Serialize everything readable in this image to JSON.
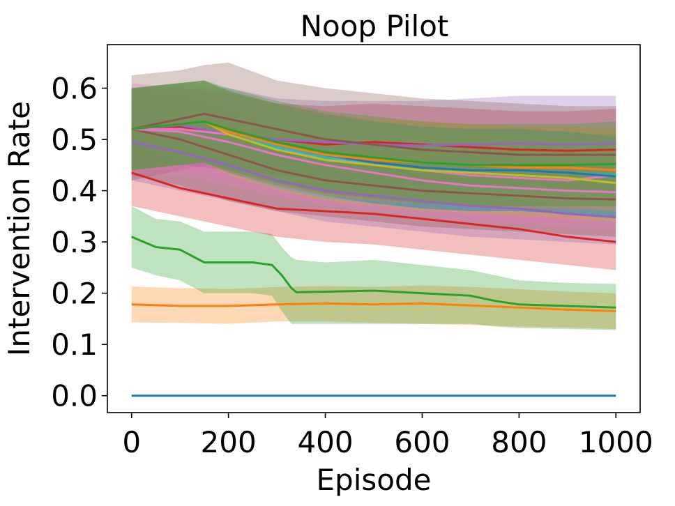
{
  "chart_data": {
    "type": "line",
    "title": "Noop Pilot",
    "xlabel": "Episode",
    "ylabel": "Intervention Rate",
    "xlim": [
      -50,
      1050
    ],
    "ylim": [
      -0.033,
      0.685
    ],
    "xticks": [
      0,
      200,
      400,
      600,
      800,
      1000
    ],
    "xtick_labels": [
      "0",
      "200",
      "400",
      "600",
      "800",
      "1000"
    ],
    "yticks": [
      0.0,
      0.1,
      0.2,
      0.3,
      0.4,
      0.5,
      0.6
    ],
    "ytick_labels": [
      "0.0",
      "0.1",
      "0.2",
      "0.3",
      "0.4",
      "0.5",
      "0.6"
    ],
    "grid": false,
    "band_opacity": 0.3,
    "series": [
      {
        "color": "#1f77b4",
        "x": [
          0,
          1000
        ],
        "mean": [
          0.0,
          0.0
        ],
        "lower": [
          0.0,
          0.0
        ],
        "upper": [
          0.0,
          0.0
        ]
      },
      {
        "color": "#ff7f0e",
        "x": [
          0,
          100,
          200,
          300,
          400,
          500,
          600,
          700,
          800,
          900,
          1000
        ],
        "mean": [
          0.178,
          0.175,
          0.175,
          0.178,
          0.18,
          0.178,
          0.18,
          0.176,
          0.172,
          0.168,
          0.165
        ],
        "lower": [
          0.143,
          0.142,
          0.14,
          0.145,
          0.145,
          0.142,
          0.14,
          0.138,
          0.135,
          0.133,
          0.13
        ],
        "upper": [
          0.213,
          0.21,
          0.208,
          0.212,
          0.214,
          0.212,
          0.215,
          0.212,
          0.208,
          0.203,
          0.2
        ]
      },
      {
        "color": "#2ca02c",
        "x": [
          0,
          50,
          100,
          150,
          200,
          250,
          290,
          310,
          330,
          340,
          400,
          500,
          600,
          700,
          750,
          800,
          900,
          1000
        ],
        "mean": [
          0.31,
          0.29,
          0.285,
          0.26,
          0.26,
          0.26,
          0.255,
          0.235,
          0.21,
          0.202,
          0.203,
          0.205,
          0.2,
          0.195,
          0.185,
          0.178,
          0.175,
          0.172
        ],
        "lower": [
          0.25,
          0.235,
          0.225,
          0.2,
          0.2,
          0.2,
          0.195,
          0.165,
          0.14,
          0.14,
          0.14,
          0.14,
          0.14,
          0.14,
          0.135,
          0.132,
          0.13,
          0.128
        ],
        "upper": [
          0.37,
          0.345,
          0.34,
          0.32,
          0.32,
          0.32,
          0.315,
          0.29,
          0.27,
          0.265,
          0.26,
          0.265,
          0.255,
          0.245,
          0.235,
          0.225,
          0.22,
          0.218
        ]
      },
      {
        "color": "#d62728",
        "x": [
          0,
          100,
          200,
          300,
          400,
          500,
          600,
          700,
          800,
          900,
          1000
        ],
        "mean": [
          0.435,
          0.405,
          0.385,
          0.365,
          0.36,
          0.355,
          0.345,
          0.335,
          0.325,
          0.31,
          0.3
        ],
        "lower": [
          0.37,
          0.35,
          0.33,
          0.31,
          0.3,
          0.295,
          0.285,
          0.275,
          0.265,
          0.255,
          0.245
        ],
        "upper": [
          0.5,
          0.46,
          0.44,
          0.42,
          0.415,
          0.41,
          0.405,
          0.395,
          0.385,
          0.37,
          0.36
        ]
      },
      {
        "color": "#d62728",
        "x": [
          0,
          100,
          200,
          300,
          400,
          500,
          600,
          700,
          800,
          900,
          1000
        ],
        "mean": [
          0.52,
          0.525,
          0.51,
          0.5,
          0.49,
          0.495,
          0.49,
          0.485,
          0.48,
          0.478,
          0.48
        ],
        "lower": [
          0.44,
          0.45,
          0.44,
          0.43,
          0.42,
          0.42,
          0.415,
          0.41,
          0.405,
          0.4,
          0.4
        ],
        "upper": [
          0.6,
          0.6,
          0.59,
          0.57,
          0.565,
          0.57,
          0.565,
          0.56,
          0.555,
          0.555,
          0.56
        ]
      },
      {
        "color": "#9467bd",
        "x": [
          0,
          100,
          200,
          300,
          400,
          500,
          600,
          700,
          800,
          900,
          1000
        ],
        "mean": [
          0.495,
          0.475,
          0.45,
          0.42,
          0.4,
          0.39,
          0.38,
          0.37,
          0.365,
          0.355,
          0.348
        ],
        "lower": [
          0.42,
          0.4,
          0.38,
          0.36,
          0.34,
          0.33,
          0.32,
          0.31,
          0.305,
          0.3,
          0.295
        ],
        "upper": [
          0.57,
          0.55,
          0.52,
          0.48,
          0.46,
          0.45,
          0.44,
          0.43,
          0.425,
          0.415,
          0.41
        ]
      },
      {
        "color": "#9467bd",
        "x": [
          0,
          100,
          200,
          300,
          400,
          500,
          600,
          700,
          800,
          900,
          1000
        ],
        "mean": [
          0.52,
          0.528,
          0.51,
          0.5,
          0.495,
          0.49,
          0.488,
          0.49,
          0.492,
          0.49,
          0.492
        ],
        "lower": [
          0.44,
          0.45,
          0.44,
          0.43,
          0.42,
          0.415,
          0.41,
          0.41,
          0.41,
          0.41,
          0.41
        ],
        "upper": [
          0.6,
          0.61,
          0.6,
          0.58,
          0.575,
          0.575,
          0.575,
          0.58,
          0.585,
          0.585,
          0.585
        ]
      },
      {
        "color": "#8c564b",
        "x": [
          0,
          100,
          150,
          200,
          300,
          400,
          500,
          600,
          700,
          800,
          900,
          1000
        ],
        "mean": [
          0.52,
          0.54,
          0.55,
          0.54,
          0.52,
          0.5,
          0.49,
          0.48,
          0.475,
          0.47,
          0.47,
          0.47
        ],
        "lower": [
          0.42,
          0.44,
          0.45,
          0.44,
          0.43,
          0.42,
          0.41,
          0.4,
          0.4,
          0.395,
          0.39,
          0.39
        ],
        "upper": [
          0.625,
          0.635,
          0.645,
          0.65,
          0.615,
          0.6,
          0.59,
          0.58,
          0.575,
          0.57,
          0.565,
          0.565
        ]
      },
      {
        "color": "#8c564b",
        "x": [
          0,
          100,
          200,
          300,
          400,
          500,
          600,
          700,
          800,
          900,
          1000
        ],
        "mean": [
          0.52,
          0.5,
          0.47,
          0.44,
          0.42,
          0.41,
          0.4,
          0.395,
          0.39,
          0.385,
          0.383
        ],
        "lower": [
          0.43,
          0.41,
          0.38,
          0.36,
          0.35,
          0.34,
          0.33,
          0.325,
          0.32,
          0.315,
          0.31
        ],
        "upper": [
          0.6,
          0.59,
          0.56,
          0.53,
          0.5,
          0.49,
          0.48,
          0.47,
          0.465,
          0.46,
          0.455
        ]
      },
      {
        "color": "#e377c2",
        "x": [
          0,
          100,
          200,
          300,
          400,
          500,
          600,
          700,
          800,
          900,
          1000
        ],
        "mean": [
          0.52,
          0.515,
          0.495,
          0.47,
          0.45,
          0.435,
          0.42,
          0.41,
          0.405,
          0.4,
          0.397
        ],
        "lower": [
          0.43,
          0.43,
          0.41,
          0.39,
          0.37,
          0.36,
          0.35,
          0.34,
          0.335,
          0.33,
          0.325
        ],
        "upper": [
          0.61,
          0.6,
          0.58,
          0.55,
          0.53,
          0.51,
          0.5,
          0.49,
          0.48,
          0.475,
          0.47
        ]
      },
      {
        "color": "#e377c2",
        "x": [
          0,
          100,
          200,
          300,
          400,
          500,
          600,
          700,
          800,
          900,
          1000
        ],
        "mean": [
          0.52,
          0.52,
          0.51,
          0.48,
          0.465,
          0.45,
          0.44,
          0.43,
          0.425,
          0.42,
          0.43
        ],
        "lower": [
          0.44,
          0.44,
          0.43,
          0.4,
          0.385,
          0.37,
          0.36,
          0.35,
          0.345,
          0.34,
          0.35
        ],
        "upper": [
          0.6,
          0.6,
          0.59,
          0.56,
          0.545,
          0.53,
          0.52,
          0.51,
          0.505,
          0.5,
          0.51
        ]
      },
      {
        "color": "#bcbd22",
        "x": [
          0,
          100,
          150,
          200,
          300,
          400,
          500,
          600,
          700,
          800,
          900,
          1000
        ],
        "mean": [
          0.52,
          0.53,
          0.535,
          0.51,
          0.48,
          0.46,
          0.45,
          0.44,
          0.435,
          0.43,
          0.425,
          0.415
        ],
        "lower": [
          0.44,
          0.45,
          0.455,
          0.43,
          0.4,
          0.38,
          0.37,
          0.36,
          0.355,
          0.35,
          0.345,
          0.34
        ],
        "upper": [
          0.6,
          0.61,
          0.615,
          0.59,
          0.56,
          0.54,
          0.53,
          0.52,
          0.515,
          0.51,
          0.505,
          0.49
        ]
      },
      {
        "color": "#17becf",
        "x": [
          0,
          100,
          150,
          200,
          300,
          400,
          500,
          600,
          700,
          800,
          900,
          1000
        ],
        "mean": [
          0.52,
          0.53,
          0.535,
          0.515,
          0.485,
          0.465,
          0.455,
          0.445,
          0.44,
          0.44,
          0.435,
          0.43
        ],
        "lower": [
          0.44,
          0.45,
          0.455,
          0.435,
          0.405,
          0.385,
          0.375,
          0.365,
          0.36,
          0.36,
          0.355,
          0.35
        ],
        "upper": [
          0.6,
          0.61,
          0.615,
          0.595,
          0.565,
          0.545,
          0.535,
          0.525,
          0.52,
          0.52,
          0.515,
          0.51
        ]
      },
      {
        "color": "#1f77b4",
        "x": [
          0,
          100,
          150,
          200,
          300,
          400,
          500,
          600,
          700,
          800,
          900,
          1000
        ],
        "mean": [
          0.52,
          0.53,
          0.535,
          0.515,
          0.49,
          0.47,
          0.455,
          0.445,
          0.44,
          0.44,
          0.435,
          0.428
        ],
        "lower": [
          0.44,
          0.45,
          0.455,
          0.435,
          0.41,
          0.39,
          0.375,
          0.365,
          0.36,
          0.36,
          0.355,
          0.35
        ],
        "upper": [
          0.6,
          0.61,
          0.615,
          0.595,
          0.57,
          0.55,
          0.535,
          0.525,
          0.52,
          0.52,
          0.515,
          0.505
        ]
      },
      {
        "color": "#ff7f0e",
        "x": [
          0,
          100,
          150,
          200,
          300,
          400,
          500,
          600,
          700,
          800,
          900,
          1000
        ],
        "mean": [
          0.52,
          0.53,
          0.535,
          0.515,
          0.49,
          0.47,
          0.46,
          0.455,
          0.45,
          0.445,
          0.445,
          0.44
        ],
        "lower": [
          0.44,
          0.45,
          0.455,
          0.435,
          0.41,
          0.39,
          0.38,
          0.375,
          0.37,
          0.365,
          0.365,
          0.36
        ],
        "upper": [
          0.6,
          0.61,
          0.615,
          0.595,
          0.57,
          0.55,
          0.54,
          0.535,
          0.53,
          0.525,
          0.525,
          0.52
        ]
      },
      {
        "color": "#2ca02c",
        "x": [
          0,
          100,
          150,
          200,
          300,
          400,
          500,
          600,
          700,
          800,
          900,
          1000
        ],
        "mean": [
          0.52,
          0.53,
          0.535,
          0.52,
          0.495,
          0.475,
          0.465,
          0.455,
          0.45,
          0.45,
          0.45,
          0.452
        ],
        "lower": [
          0.44,
          0.45,
          0.455,
          0.44,
          0.415,
          0.395,
          0.385,
          0.375,
          0.37,
          0.37,
          0.37,
          0.37
        ],
        "upper": [
          0.6,
          0.61,
          0.615,
          0.6,
          0.575,
          0.555,
          0.545,
          0.535,
          0.53,
          0.53,
          0.53,
          0.535
        ]
      }
    ]
  }
}
